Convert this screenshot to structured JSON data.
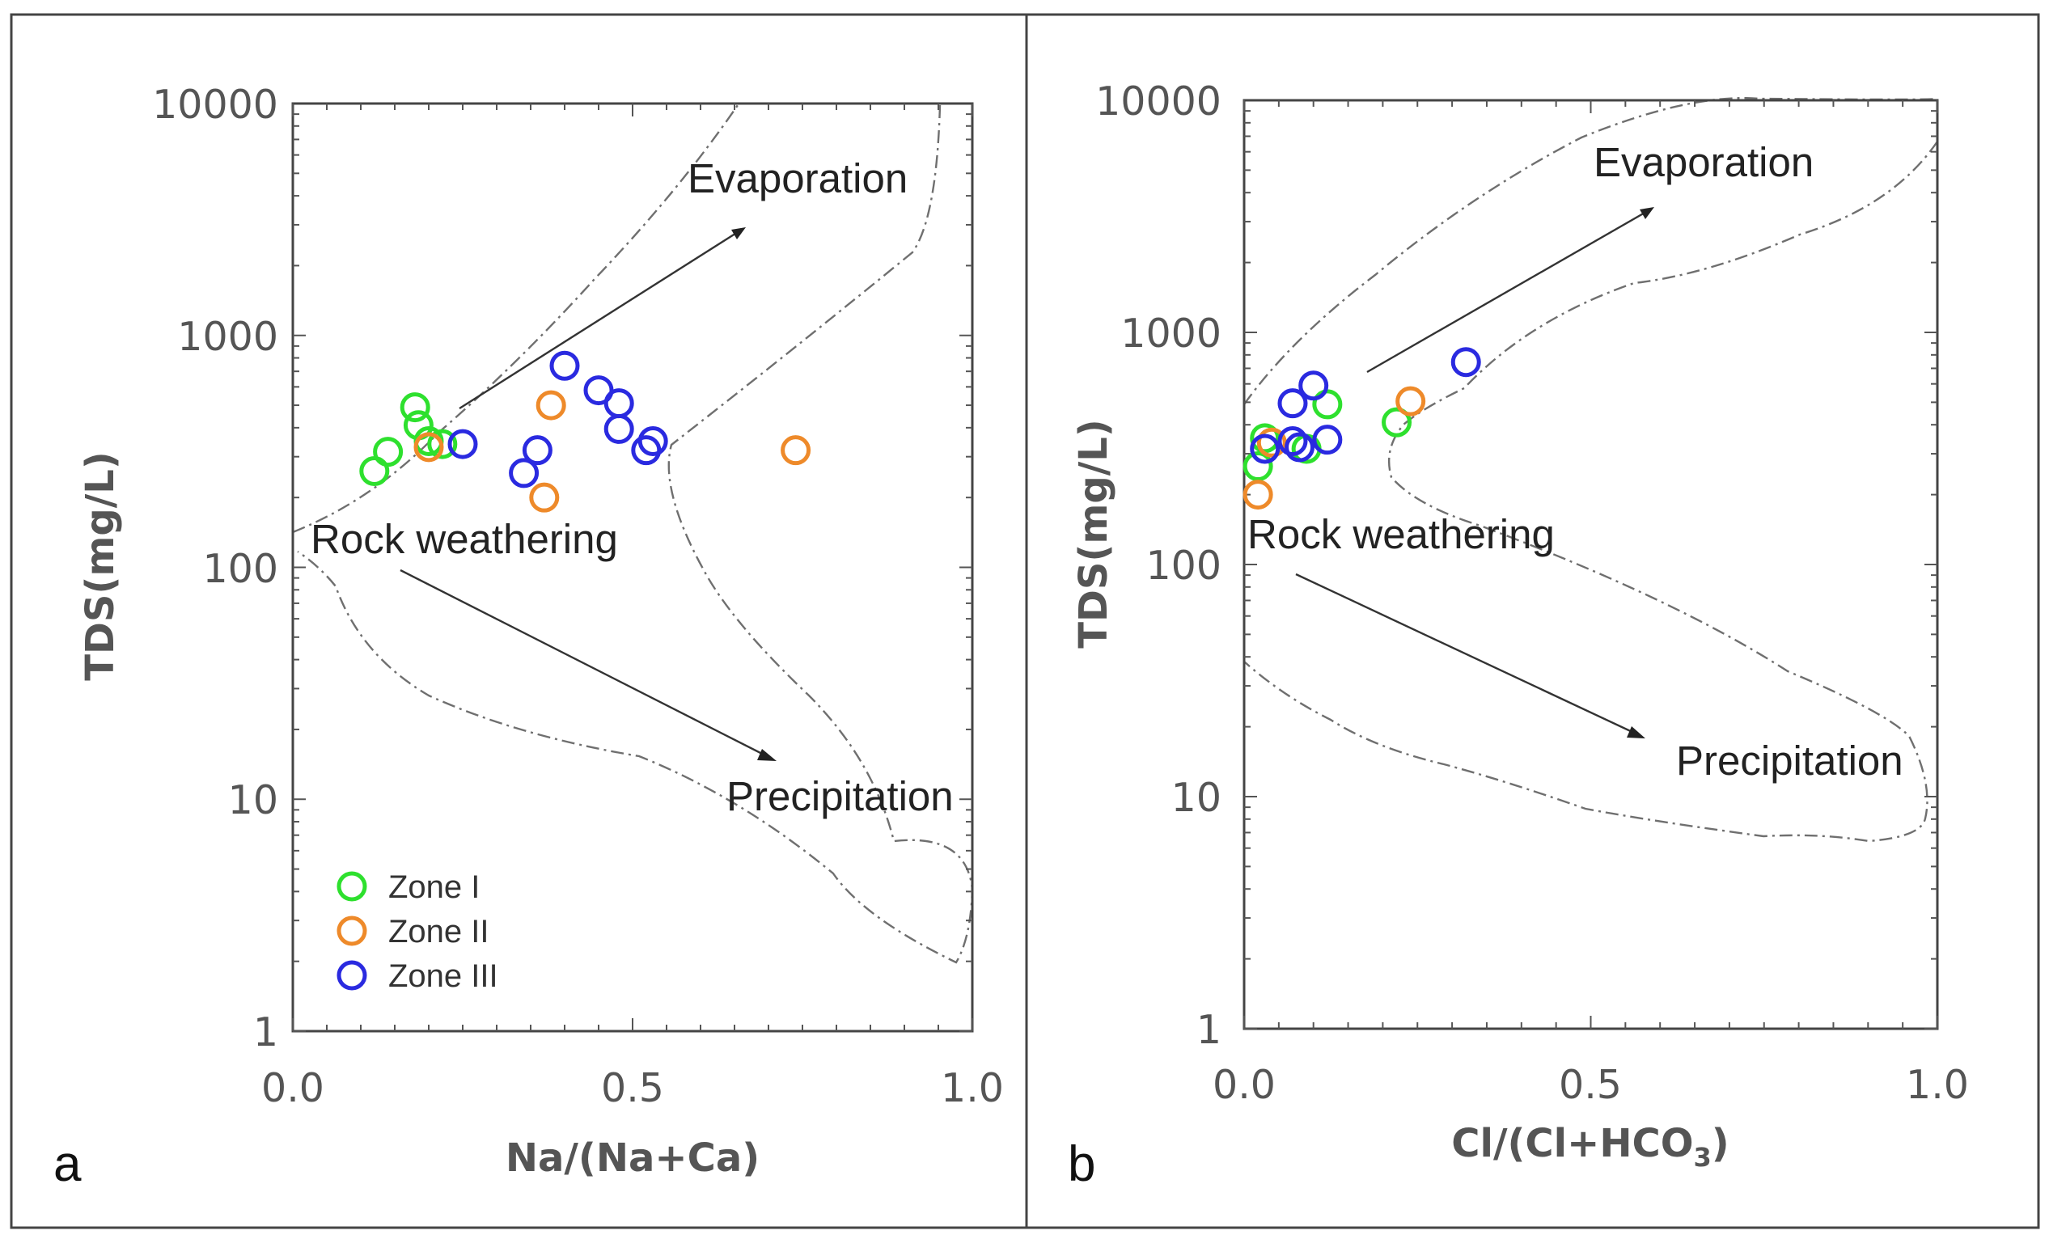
{
  "series_styles": [
    {
      "name": "Zone I",
      "color": "#2ee02e"
    },
    {
      "name": "Zone II",
      "color": "#ee8a2a"
    },
    {
      "name": "Zone III",
      "color": "#2a2ae0"
    }
  ],
  "chart_data": [
    {
      "type": "scatter",
      "panel_label": "a",
      "xlabel": "Na/(Na+Ca)",
      "ylabel": "TDS(mg/L)",
      "xlim": [
        0.0,
        1.0
      ],
      "ylim": [
        1,
        10000
      ],
      "yscale": "log",
      "x_ticks": [
        "0.0",
        "0.5",
        "1.0"
      ],
      "y_ticks": [
        "1",
        "10",
        "100",
        "1000",
        "10000"
      ],
      "annotations": {
        "evaporation": "Evaporation",
        "rock_weathering": "Rock weathering",
        "precipitation": "Precipitation"
      },
      "legend": {
        "position": "bottom-left",
        "entries": [
          "Zone I",
          "Zone II",
          "Zone III"
        ]
      },
      "series": [
        {
          "name": "Zone I",
          "points": [
            [
              0.12,
              260
            ],
            [
              0.14,
              315
            ],
            [
              0.18,
              490
            ],
            [
              0.185,
              410
            ],
            [
              0.2,
              350
            ],
            [
              0.22,
              340
            ]
          ]
        },
        {
          "name": "Zone II",
          "points": [
            [
              0.2,
              330
            ],
            [
              0.38,
              500
            ],
            [
              0.37,
              200
            ],
            [
              0.74,
              320
            ]
          ]
        },
        {
          "name": "Zone III",
          "points": [
            [
              0.25,
              340
            ],
            [
              0.34,
              255
            ],
            [
              0.36,
              320
            ],
            [
              0.4,
              740
            ],
            [
              0.45,
              580
            ],
            [
              0.48,
              510
            ],
            [
              0.48,
              395
            ],
            [
              0.52,
              320
            ],
            [
              0.53,
              350
            ]
          ]
        }
      ]
    },
    {
      "type": "scatter",
      "panel_label": "b",
      "xlabel": "Cl/(Cl+HCO",
      "xlabel_sub": "3",
      "xlabel_end": ")",
      "ylabel": "TDS(mg/L)",
      "xlim": [
        0.0,
        1.0
      ],
      "ylim": [
        1,
        10000
      ],
      "yscale": "log",
      "x_ticks": [
        "0.0",
        "0.5",
        "1.0"
      ],
      "y_ticks": [
        "1",
        "10",
        "100",
        "1000",
        "10000"
      ],
      "annotations": {
        "evaporation": "Evaporation",
        "rock_weathering": "Rock weathering",
        "precipitation": "Precipitation"
      },
      "series": [
        {
          "name": "Zone I",
          "points": [
            [
              0.02,
              265
            ],
            [
              0.03,
              350
            ],
            [
              0.09,
              315
            ],
            [
              0.12,
              490
            ],
            [
              0.22,
              410
            ]
          ]
        },
        {
          "name": "Zone II",
          "points": [
            [
              0.02,
              200
            ],
            [
              0.04,
              335
            ],
            [
              0.24,
              505
            ]
          ]
        },
        {
          "name": "Zone III",
          "points": [
            [
              0.03,
              315
            ],
            [
              0.07,
              495
            ],
            [
              0.07,
              340
            ],
            [
              0.08,
              320
            ],
            [
              0.1,
              590
            ],
            [
              0.12,
              345
            ],
            [
              0.32,
              745
            ]
          ]
        }
      ]
    }
  ]
}
